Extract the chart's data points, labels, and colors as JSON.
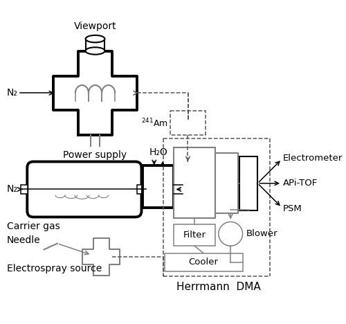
{
  "bg_color": "#ffffff",
  "line_color": "#000000",
  "gray_color": "#808080",
  "dashed_color": "#555555",
  "labels": {
    "viewport": "Viewport",
    "power_supply": "Power supply",
    "n2_top": "N₂",
    "n2_mid": "N₂",
    "h2o": "H₂O",
    "am241": "$^{241}$Am",
    "filter": "Filter",
    "cooler": "Cooler",
    "blower": "Blower",
    "electrometer": "Electrometer",
    "apitof": "APi-TOF",
    "psm": "PSM",
    "herrmann": "Herrmann  DMA",
    "carrier_gas": "Carrier gas",
    "needle": "Needle",
    "electrospray": "Electrospray source"
  }
}
